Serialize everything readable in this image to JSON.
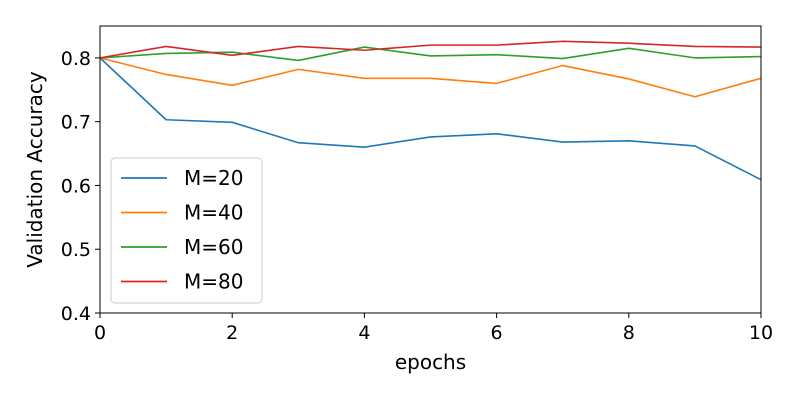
{
  "chart_data": {
    "type": "line",
    "xlabel": "epochs",
    "ylabel": "Validation Accuracy",
    "xlim": [
      0,
      10
    ],
    "ylim": [
      0.4,
      0.85
    ],
    "xticks": [
      "0",
      "2",
      "4",
      "6",
      "8",
      "10"
    ],
    "yticks": [
      "0.4",
      "0.5",
      "0.6",
      "0.7",
      "0.8"
    ],
    "grid": false,
    "legend_position": "lower-left",
    "x": [
      0,
      1,
      2,
      3,
      4,
      5,
      6,
      7,
      8,
      9,
      10
    ],
    "series": [
      {
        "name": "M=20",
        "color": "#1f77b4",
        "values": [
          0.8,
          0.703,
          0.699,
          0.667,
          0.66,
          0.676,
          0.681,
          0.668,
          0.67,
          0.662,
          0.609
        ]
      },
      {
        "name": "M=40",
        "color": "#ff7f0e",
        "values": [
          0.8,
          0.774,
          0.757,
          0.782,
          0.768,
          0.768,
          0.76,
          0.788,
          0.767,
          0.739,
          0.768
        ]
      },
      {
        "name": "M=60",
        "color": "#2ca02c",
        "values": [
          0.8,
          0.807,
          0.809,
          0.796,
          0.817,
          0.803,
          0.805,
          0.799,
          0.815,
          0.8,
          0.802
        ]
      },
      {
        "name": "M=80",
        "color": "#d62728",
        "values": [
          0.8,
          0.818,
          0.804,
          0.818,
          0.812,
          0.82,
          0.82,
          0.826,
          0.823,
          0.818,
          0.817
        ]
      }
    ]
  }
}
